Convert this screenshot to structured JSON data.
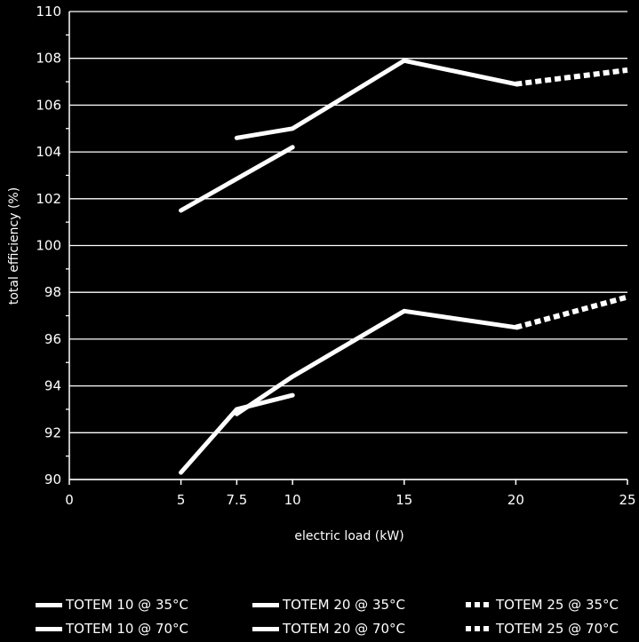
{
  "chart_data": {
    "type": "line",
    "title": "",
    "xlabel": "electric load (kW)",
    "ylabel": "total efficiency (%)",
    "xlim": [
      0,
      25
    ],
    "ylim": [
      90,
      110
    ],
    "x_ticks": [
      "0",
      "5",
      "7.5",
      "10",
      "15",
      "20",
      "25"
    ],
    "x_tick_values": [
      0,
      5,
      7.5,
      10,
      15,
      20,
      25
    ],
    "y_ticks": [
      "90",
      "92",
      "94",
      "96",
      "98",
      "100",
      "102",
      "104",
      "106",
      "108",
      "110"
    ],
    "y_tick_values": [
      90,
      92,
      94,
      96,
      98,
      100,
      102,
      104,
      106,
      108,
      110
    ],
    "grid": "horizontal",
    "legend_position": "bottom",
    "series": [
      {
        "name": "TOTEM 10 @ 35°C",
        "style": "solid",
        "x": [
          5,
          10
        ],
        "y": [
          101.5,
          104.2
        ]
      },
      {
        "name": "TOTEM 20 @ 35°C",
        "style": "solid",
        "x": [
          7.5,
          10,
          15,
          20
        ],
        "y": [
          104.6,
          105.0,
          107.9,
          106.9
        ]
      },
      {
        "name": "TOTEM 25 @ 35°C",
        "style": "dashed",
        "x": [
          20,
          25
        ],
        "y": [
          106.9,
          107.5
        ]
      },
      {
        "name": "TOTEM 10 @ 70°C",
        "style": "solid",
        "x": [
          5,
          7.5,
          10
        ],
        "y": [
          90.3,
          93.0,
          93.6
        ]
      },
      {
        "name": "TOTEM 20 @ 70°C",
        "style": "solid",
        "x": [
          7.5,
          10,
          15,
          20
        ],
        "y": [
          92.8,
          94.4,
          97.2,
          96.5
        ]
      },
      {
        "name": "TOTEM 25 @ 70°C",
        "style": "dashed",
        "x": [
          20,
          25
        ],
        "y": [
          96.5,
          97.8
        ]
      }
    ]
  },
  "legend_rows": [
    [
      "TOTEM 10 @ 35°C",
      "TOTEM 20 @ 35°C",
      "TOTEM 25 @ 35°C"
    ],
    [
      "TOTEM 10 @ 70°C",
      "TOTEM 20 @ 70°C",
      "TOTEM 25 @ 70°C"
    ]
  ],
  "colors": {
    "background": "#000000",
    "foreground": "#ffffff"
  }
}
